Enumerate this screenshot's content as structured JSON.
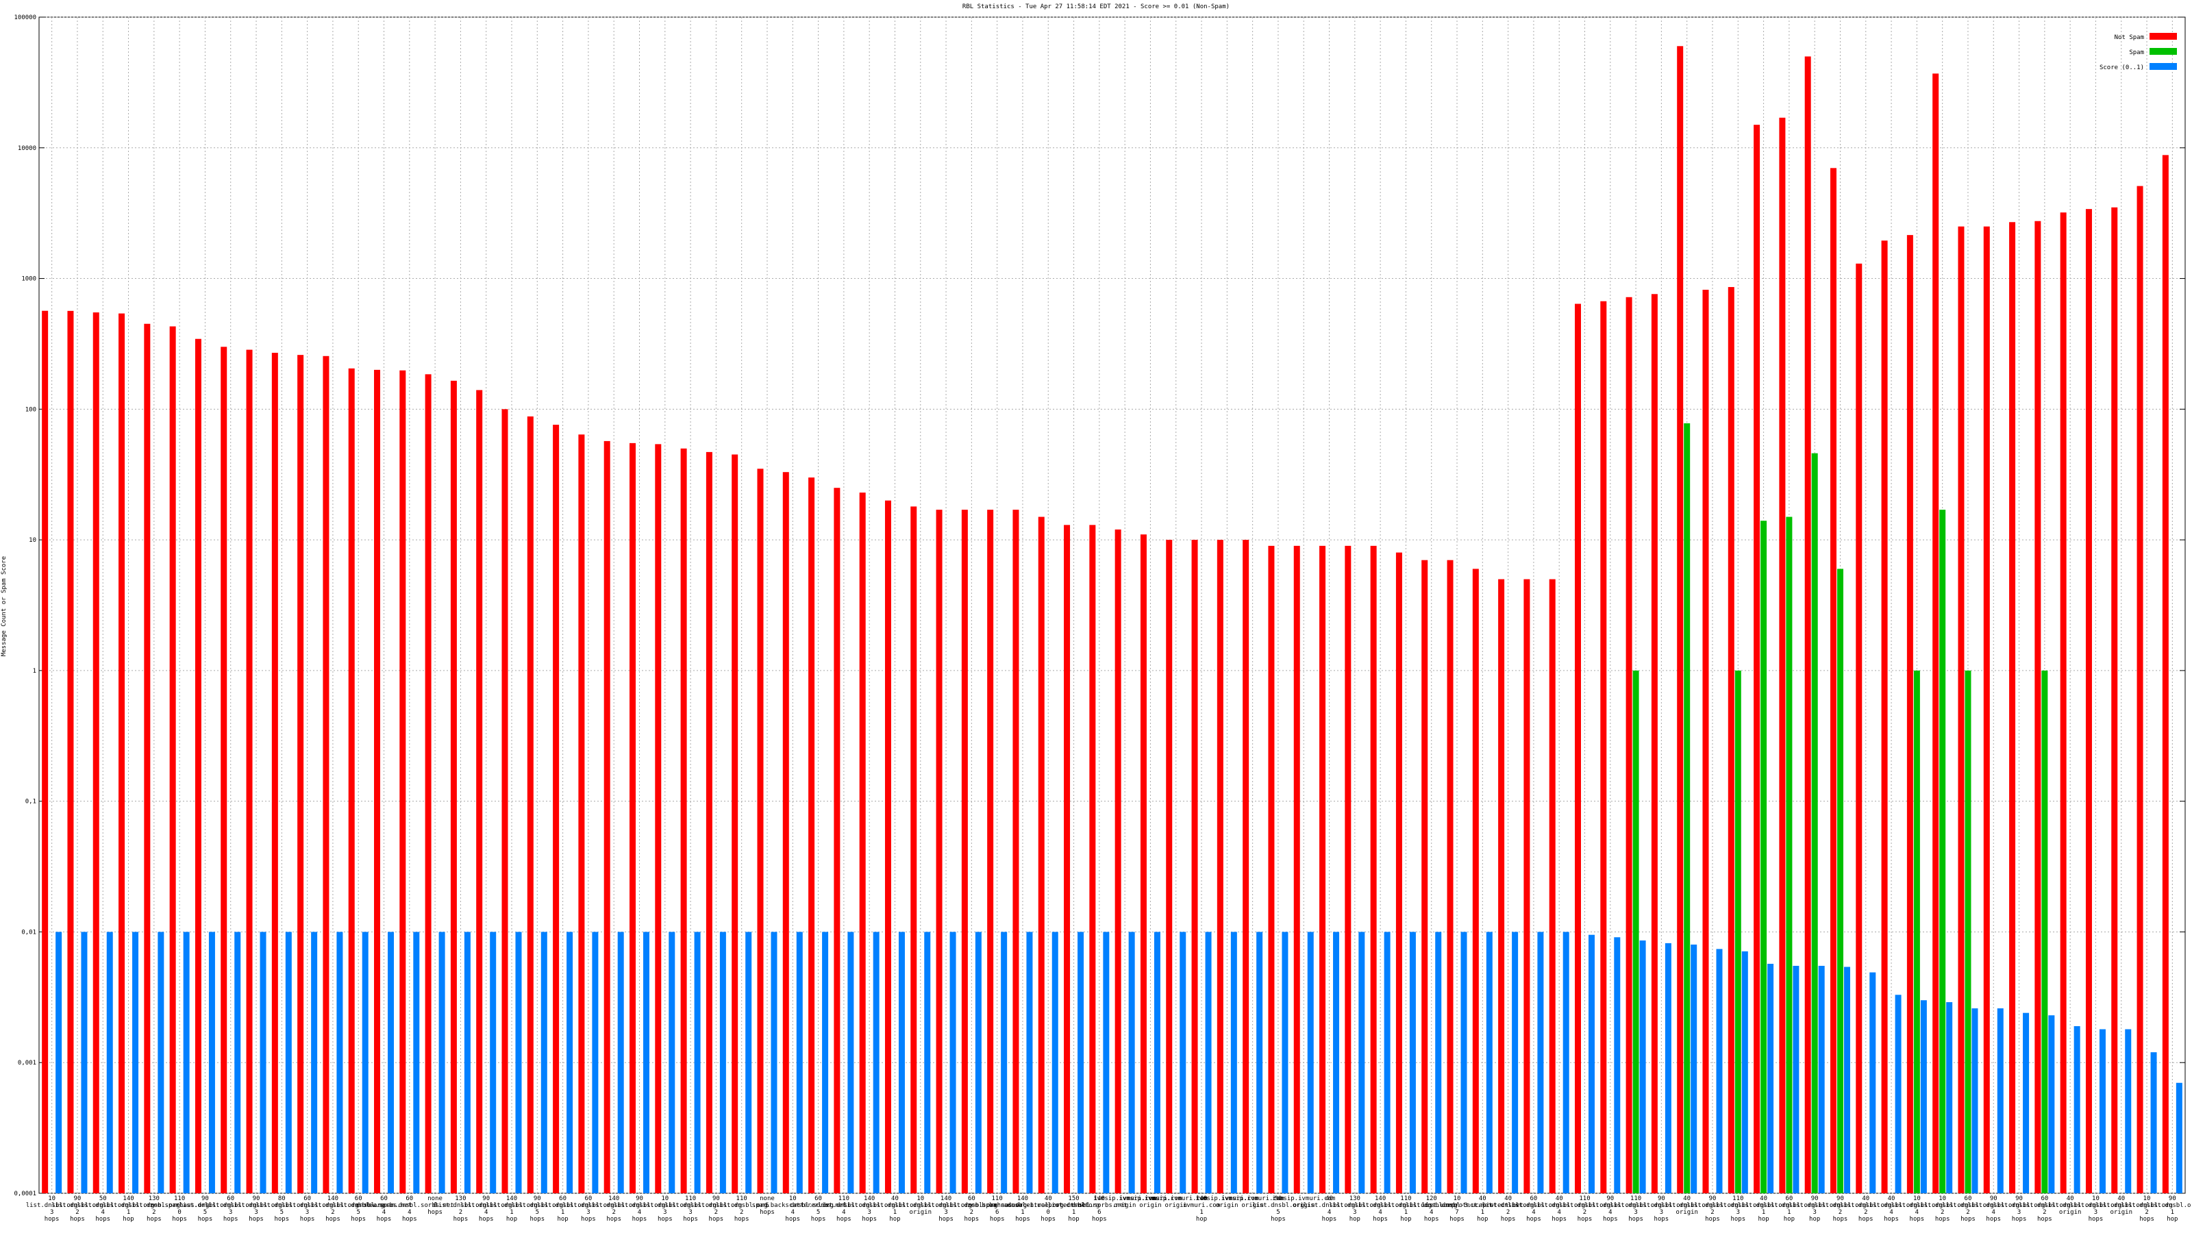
{
  "chart_data": {
    "type": "bar",
    "title": "RBL Statistics - Tue Apr 27 11:58:14 EDT 2021 - Score >= 0.01 (Non-Spam)",
    "y_label": "Message Count or Spam Score",
    "log_scale": true,
    "grid": true,
    "legend": "top-right",
    "ylim": [
      0.0001,
      100000
    ],
    "yticks": [
      {
        "value": 0.0001,
        "label": "0,0001"
      },
      {
        "value": 0.001,
        "label": "0,001"
      },
      {
        "value": 0.01,
        "label": "0,01"
      },
      {
        "value": 0.1,
        "label": "0,1"
      },
      1,
      10,
      100,
      1000,
      10000,
      100000
    ],
    "categories": [
      "10 list.dnsbl.org 3 hops",
      "90 list.dnsbl.org 2 hops",
      "50 list.dnsbl.org 4 hops",
      "140 list.dnsbl.org 1 hop",
      "130 list.dnsbl.org 2 hops",
      "110 zen.spamhaus.org 0 hops",
      "90 list.dnsbl.org 5 hops",
      "60 list.dnsbl.org 3 hops",
      "90 list.dnsbl.org 3 hops",
      "80 list.dnsbl.org 5 hops",
      "60 list.dnsbl.org 3 hops",
      "140 list.dnsbl.org 2 hops",
      "60 list.dnsbl.org 5 hops",
      "60 dnsbl.sorbs.net 4 hops",
      "60 new.spam.dnsbl.sorbs.net 4 hops",
      "none 0 hops",
      "130 list.dnsbl.org 2 hops",
      "90 list.dnsbl.org 4 hops",
      "140 list.dnsbl.org 1 hop",
      "90 list.dnsbl.org 5 hops",
      "60 list.dnsbl.org 1 hop",
      "60 list.dnsbl.org 3 hops",
      "140 list.dnsbl.org 2 hops",
      "90 list.dnsbl.org 4 hops",
      "10 list.dnsbl.org 3 hops",
      "110 list.dnsbl.org 3 hops",
      "90 list.dnsbl.org 2 hops",
      "110 list.dnsbl.org 2 hops",
      "none 5 hops",
      "10 spam.backscatterer.org 4 hops",
      "60 dnsbl.sorbs.net 5 hops",
      "110 list.dnsbl.org 4 hops",
      "140 list.dnsbl.org 3 hops",
      "40 list.dnsbl.org 1 hop",
      "10 list.dnsbl.org origin",
      "140 list.dnsbl.org 3 hops",
      "60 list.dnsbl.org 2 hops",
      "110 zen.spamhaus.org 6 hops",
      "140 b.barracudacentral.org 1 hops",
      "40 dnsbl-1.uceprotect.net 0 hops",
      "150 list.dnsbl.org 1 hop",
      "140 dnsbl.sorbs.net 6 hops",
      "ivmsip.ivmuri.com origin",
      "ivmsip.ivmuri.com origin",
      "ivmsip.ivmuri.com origin",
      "140 ivmuri.com 1 hop",
      "ivmsip.ivmuri.com origin",
      "ivmsip.ivmuri.com origin",
      "90 list.dnsbl.org 5 hops",
      "ivmsip.ivmuri.com origin",
      "40 list.dnsbl.org 4 hops",
      "130 list.dnsbl.org 3 hop",
      "140 list.dnsbl.org 4 hops",
      "110 list.dnsbl.org 1 hop",
      "120 list.dnsbl.org 4 hops",
      "10 list.uceprotect.net 7 hops",
      "40 dnsbl-3.uceprotect.net 1 hop",
      "40 list.dnsbl.org 2 hops",
      "60 list.dnsbl.org 4 hops",
      "40 list.dnsbl.org 4 hops",
      "110 list.dnsbl.org 2 hops",
      "90 list.dnsbl.org 4 hops",
      "110 list.dnsbl.org 3 hops",
      "90 list.dnsbl.org 3 hops",
      "40 list.dnsbl.org origin",
      "90 list.dnsbl.org 2 hops",
      "110 list.dnsbl.org 3 hops",
      "40 list.dnsbl.org 1 hop",
      "60 list.dnsbl.org 1 hop",
      "90 list.dnsbl.org 3 hop",
      "90 list.dnsbl.org 2 hops",
      "40 list.dnsbl.org 2 hops",
      "40 list.dnsbl.org 4 hops",
      "10 list.dnsbl.org 4 hops",
      "10 list.dnsbl.org 2 hops",
      "60 list.dnsbl.org 2 hops",
      "90 list.dnsbl.org 4 hops",
      "90 list.dnsbl.org 3 hops",
      "60 list.dnsbl.org 2 hops",
      "40 list.dnsbl.org origin",
      "10 list.dnsbl.org 3 hops",
      "40 list.dnsbl.org origin",
      "10 list.dnsbl.org 2 hops",
      "90 list.dnsbl.org 1 hop"
    ],
    "series": [
      {
        "name": "Not Spam",
        "color": "#ff0000",
        "values": [
          566,
          565,
          550,
          540,
          450,
          430,
          345,
          300,
          285,
          270,
          260,
          255,
          205,
          200,
          198,
          185,
          165,
          140,
          100,
          88,
          76,
          64,
          57,
          55,
          54,
          50,
          47,
          45,
          35,
          33,
          30,
          25,
          23,
          20,
          18,
          17,
          17,
          17,
          17,
          15,
          13,
          13,
          12,
          11,
          10,
          10,
          10,
          10,
          9,
          9,
          9,
          9,
          9,
          8,
          7,
          7,
          6,
          5,
          5,
          5,
          640,
          670,
          720,
          760,
          60000,
          820,
          860,
          15000,
          17000,
          50000,
          7000,
          1300,
          1950,
          2150,
          37000,
          2500,
          2500,
          2700,
          2750,
          3200,
          3400,
          3500,
          5100,
          8800
        ]
      },
      {
        "name": "Spam",
        "color": "#00c000",
        "values": [
          null,
          null,
          null,
          null,
          null,
          null,
          null,
          null,
          null,
          null,
          null,
          null,
          null,
          null,
          null,
          null,
          null,
          null,
          null,
          null,
          null,
          null,
          null,
          null,
          null,
          null,
          null,
          null,
          null,
          null,
          null,
          null,
          null,
          null,
          null,
          null,
          null,
          null,
          null,
          null,
          null,
          null,
          null,
          null,
          null,
          null,
          null,
          null,
          null,
          null,
          null,
          null,
          null,
          null,
          null,
          null,
          null,
          null,
          null,
          null,
          null,
          null,
          1,
          null,
          78,
          null,
          1,
          14,
          15,
          46,
          6,
          null,
          null,
          1,
          17,
          1,
          null,
          null,
          1,
          null,
          null,
          null,
          null,
          null
        ]
      },
      {
        "name": "Score (0..1)",
        "color": "#0080ff",
        "values": [
          0.01,
          0.01,
          0.01,
          0.01,
          0.01,
          0.01,
          0.01,
          0.01,
          0.01,
          0.01,
          0.01,
          0.01,
          0.01,
          0.01,
          0.01,
          0.01,
          0.01,
          0.01,
          0.01,
          0.01,
          0.01,
          0.01,
          0.01,
          0.01,
          0.01,
          0.01,
          0.01,
          0.01,
          0.01,
          0.01,
          0.01,
          0.01,
          0.01,
          0.01,
          0.01,
          0.01,
          0.01,
          0.01,
          0.01,
          0.01,
          0.01,
          0.01,
          0.01,
          0.01,
          0.01,
          0.01,
          0.01,
          0.01,
          0.01,
          0.01,
          0.01,
          0.01,
          0.01,
          0.01,
          0.01,
          0.01,
          0.01,
          0.01,
          0.01,
          0.01,
          0.0095,
          0.0091,
          0.0086,
          0.0082,
          0.008,
          0.0074,
          0.0071,
          0.0057,
          0.0055,
          0.0055,
          0.0054,
          0.0049,
          0.0033,
          0.003,
          0.0029,
          0.0026,
          0.0026,
          0.0024,
          0.0023,
          0.0019,
          0.0018,
          0.0018,
          0.0012,
          0.0007
        ]
      }
    ]
  }
}
